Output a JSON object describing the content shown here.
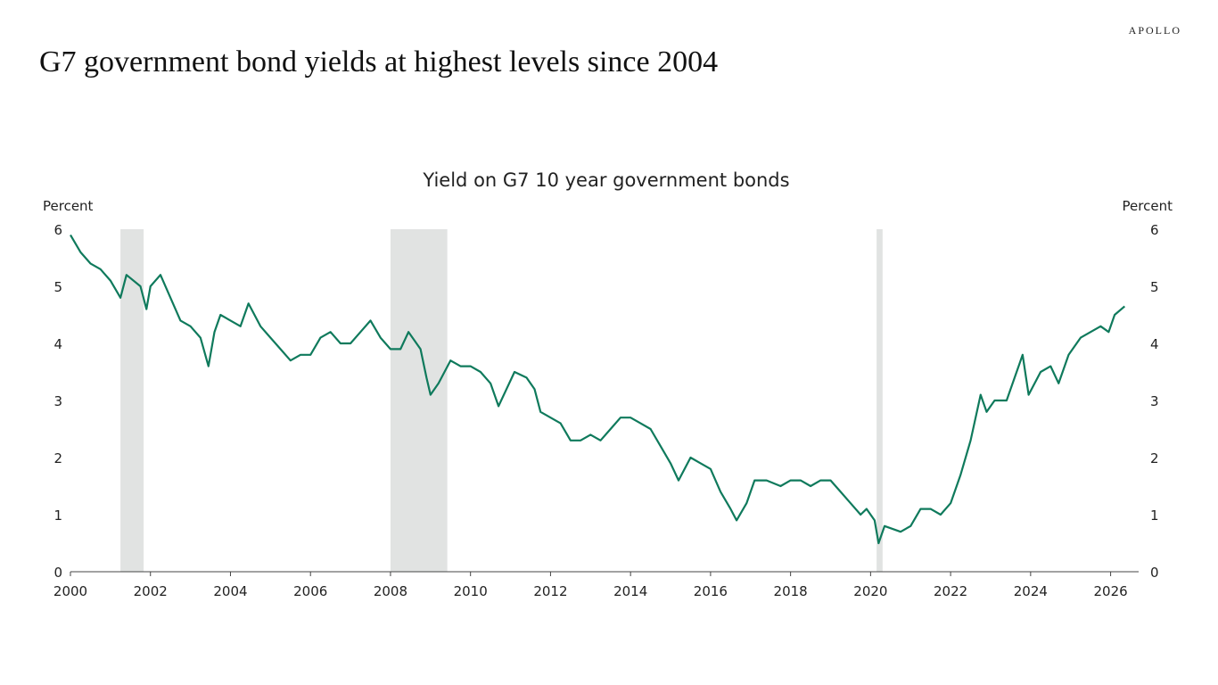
{
  "brand": "APOLLO",
  "headline": "G7 government bond yields at highest levels since 2004",
  "chart_data": {
    "type": "line",
    "title": "Yield on G7 10 year government bonds",
    "y_label": "Percent",
    "y2_label": "Percent",
    "xlim": [
      2000,
      2026.7
    ],
    "xticks": [
      2000,
      2002,
      2004,
      2006,
      2008,
      2010,
      2012,
      2014,
      2016,
      2018,
      2020,
      2022,
      2024,
      2026
    ],
    "ylim": [
      0,
      6
    ],
    "yticks": [
      0,
      1,
      2,
      3,
      4,
      5,
      6
    ],
    "y2lim": [
      0,
      6
    ],
    "y2ticks": [
      0,
      1,
      2,
      3,
      4,
      5,
      6
    ],
    "shading": [
      [
        2001.25,
        2001.83
      ],
      [
        2008.0,
        2009.42
      ],
      [
        2020.15,
        2020.3
      ]
    ],
    "shading_color": "#e1e3e2",
    "x": [
      2000.0,
      2000.25,
      2000.5,
      2000.75,
      2001.0,
      2001.25,
      2001.4,
      2001.75,
      2001.9,
      2002.0,
      2002.25,
      2002.5,
      2002.75,
      2003.0,
      2003.25,
      2003.45,
      2003.6,
      2003.75,
      2004.0,
      2004.25,
      2004.45,
      2004.75,
      2005.0,
      2005.25,
      2005.5,
      2005.75,
      2006.0,
      2006.25,
      2006.5,
      2006.75,
      2007.0,
      2007.25,
      2007.5,
      2007.75,
      2008.0,
      2008.25,
      2008.45,
      2008.75,
      2008.9,
      2009.0,
      2009.2,
      2009.5,
      2009.75,
      2010.0,
      2010.25,
      2010.5,
      2010.7,
      2010.9,
      2011.1,
      2011.4,
      2011.6,
      2011.75,
      2012.0,
      2012.25,
      2012.5,
      2012.75,
      2013.0,
      2013.25,
      2013.5,
      2013.75,
      2014.0,
      2014.25,
      2014.5,
      2014.75,
      2015.0,
      2015.2,
      2015.5,
      2015.75,
      2016.0,
      2016.25,
      2016.5,
      2016.65,
      2016.9,
      2017.1,
      2017.4,
      2017.75,
      2018.0,
      2018.25,
      2018.5,
      2018.75,
      2019.0,
      2019.25,
      2019.5,
      2019.75,
      2019.9,
      2020.1,
      2020.2,
      2020.35,
      2020.75,
      2021.0,
      2021.25,
      2021.5,
      2021.75,
      2022.0,
      2022.25,
      2022.5,
      2022.75,
      2022.9,
      2023.1,
      2023.4,
      2023.6,
      2023.8,
      2023.95,
      2024.25,
      2024.5,
      2024.7,
      2024.95,
      2025.25,
      2025.5,
      2025.75,
      2025.95,
      2026.1,
      2026.35
    ],
    "series": [
      {
        "color": "#0f7a5c",
        "values": [
          5.9,
          5.6,
          5.4,
          5.3,
          5.1,
          4.8,
          5.2,
          5.0,
          4.6,
          5.0,
          5.2,
          4.8,
          4.4,
          4.3,
          4.1,
          3.6,
          4.2,
          4.5,
          4.4,
          4.3,
          4.7,
          4.3,
          4.1,
          3.9,
          3.7,
          3.8,
          3.8,
          4.1,
          4.2,
          4.0,
          4.0,
          4.2,
          4.4,
          4.1,
          3.9,
          3.9,
          4.2,
          3.9,
          3.4,
          3.1,
          3.3,
          3.7,
          3.6,
          3.6,
          3.5,
          3.3,
          2.9,
          3.2,
          3.5,
          3.4,
          3.2,
          2.8,
          2.7,
          2.6,
          2.3,
          2.3,
          2.4,
          2.3,
          2.5,
          2.7,
          2.7,
          2.6,
          2.5,
          2.2,
          1.9,
          1.6,
          2.0,
          1.9,
          1.8,
          1.4,
          1.1,
          0.9,
          1.2,
          1.6,
          1.6,
          1.5,
          1.6,
          1.6,
          1.5,
          1.6,
          1.6,
          1.4,
          1.2,
          1.0,
          1.1,
          0.9,
          0.5,
          0.8,
          0.7,
          0.8,
          1.1,
          1.1,
          1.0,
          1.2,
          1.7,
          2.3,
          3.1,
          2.8,
          3.0,
          3.0,
          3.4,
          3.8,
          3.1,
          3.5,
          3.6,
          3.3,
          3.8,
          4.1,
          4.2,
          4.3,
          4.2,
          4.5,
          4.65
        ]
      }
    ]
  }
}
